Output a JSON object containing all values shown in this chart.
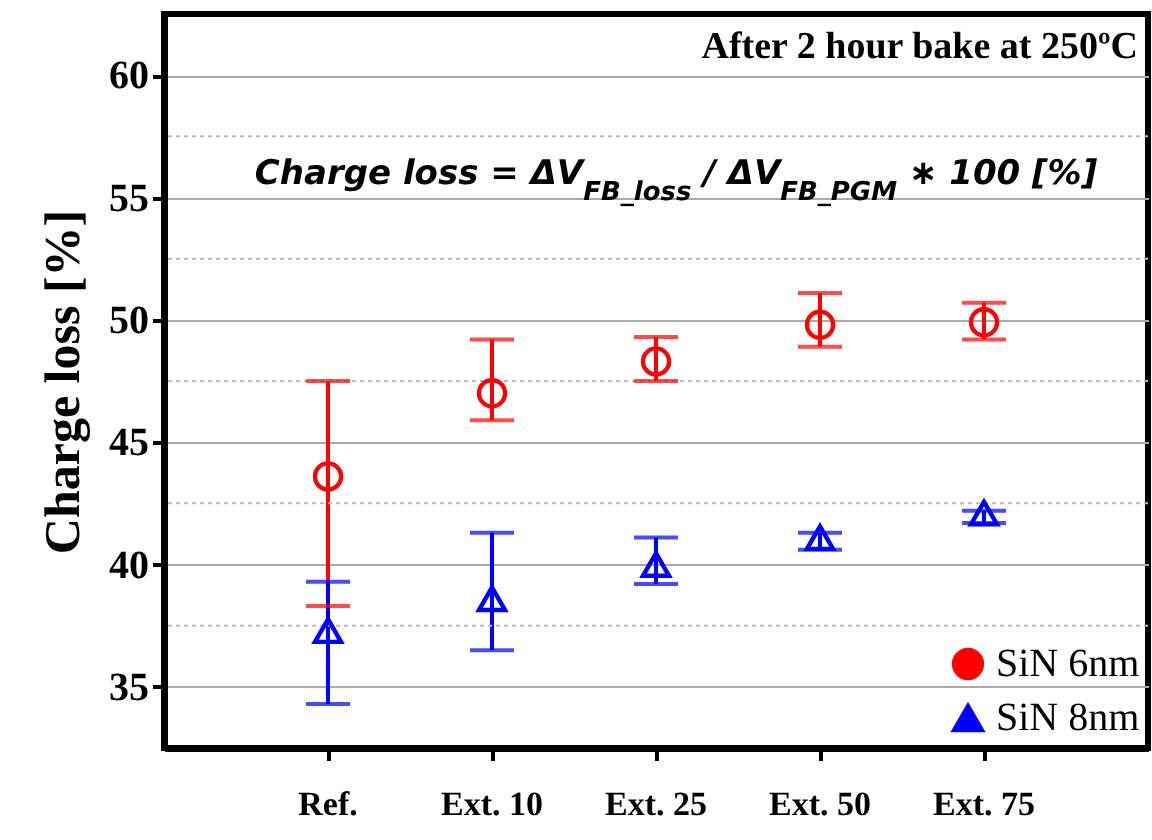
{
  "chart_data": {
    "type": "scatter",
    "ylabel": "Charge loss [%]",
    "categories": [
      "Ref.",
      "Ext. 10",
      "Ext. 25",
      "Ext. 50",
      "Ext. 75"
    ],
    "series": [
      {
        "name": "SiN 6nm",
        "color": "#ff0000",
        "marker": "circle",
        "values": [
          43.6,
          47.0,
          48.3,
          49.8,
          49.9
        ],
        "errors": [
          [
            38.3,
            47.5
          ],
          [
            45.9,
            49.2
          ],
          [
            47.5,
            49.3
          ],
          [
            48.9,
            51.1
          ],
          [
            49.2,
            50.7
          ]
        ]
      },
      {
        "name": "SiN 8nm",
        "color": "#0000ff",
        "marker": "triangle",
        "values": [
          37.3,
          38.6,
          40.0,
          41.1,
          42.1
        ],
        "errors": [
          [
            34.3,
            39.3
          ],
          [
            36.5,
            41.3
          ],
          [
            39.2,
            41.1
          ],
          [
            40.6,
            41.3
          ],
          [
            41.7,
            42.2
          ]
        ]
      }
    ],
    "ylim": [
      32.5,
      62.5
    ],
    "yticks": [
      35,
      {
        "value": 37.5,
        "label": null
      },
      40,
      {
        "value": 42.5,
        "label": null
      },
      45,
      {
        "value": 47.5,
        "label": null
      },
      50,
      {
        "value": 52.5,
        "label": null
      },
      55,
      {
        "value": 57.5,
        "label": null
      },
      60
    ],
    "grid": "y",
    "legend": "bottom right",
    "annotations": [
      "After 2 hour bake at 250ºC",
      "Charge loss = ΔV$_{FB_loss}$ / ΔV$_{FB_PGM}$ ∗ 100 [%]"
    ]
  }
}
